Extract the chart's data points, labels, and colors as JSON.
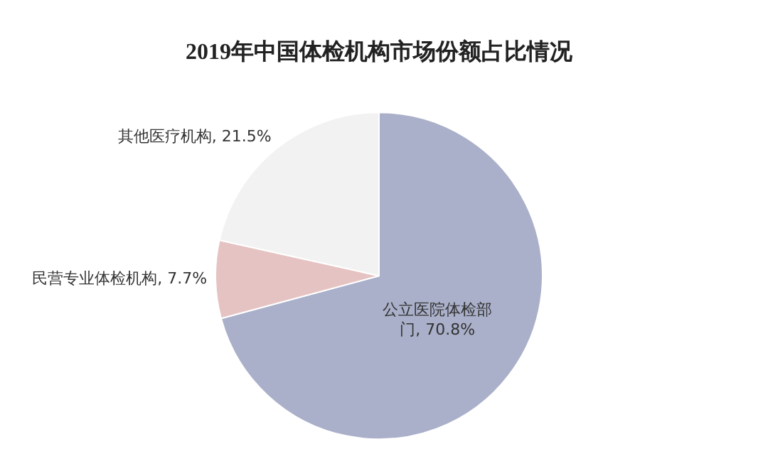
{
  "chart_data": {
    "type": "pie",
    "title": "2019年中国体检机构市场份额占比情况",
    "categories": [
      "公立医院体检部门",
      "民营专业体检机构",
      "其他医疗机构"
    ],
    "values": [
      70.8,
      7.7,
      21.5
    ],
    "value_labels": [
      "70.8%",
      "7.7%",
      "21.5%"
    ],
    "colors": [
      "#aab0c9",
      "#e6c3c3",
      "#f2f2f2"
    ],
    "legend": false
  }
}
